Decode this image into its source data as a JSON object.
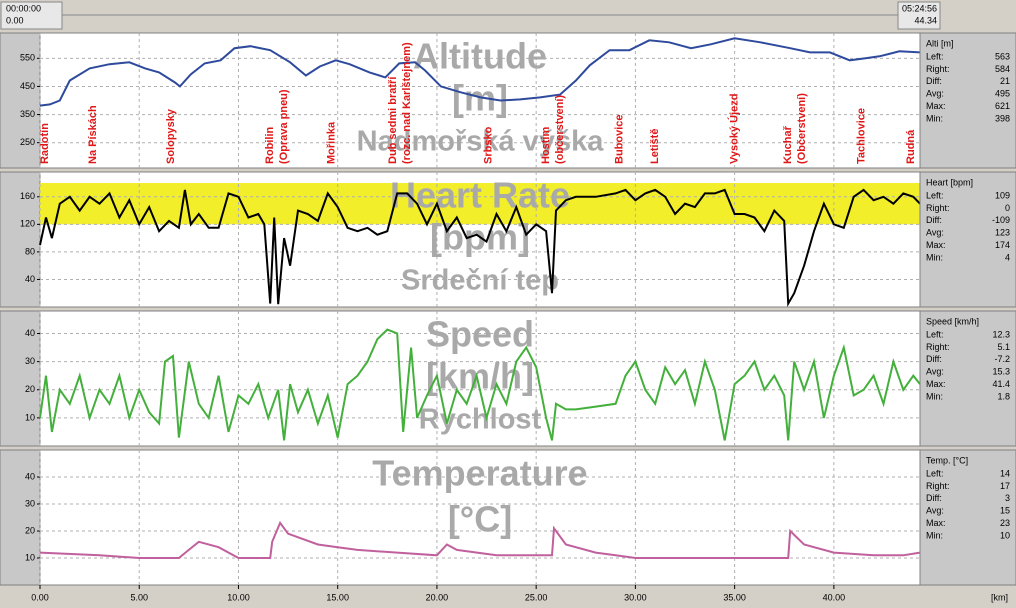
{
  "header": {
    "start_time": "00:00:00",
    "start_km": "0.00",
    "end_time": "05:24:56",
    "end_km": "44.34"
  },
  "chart_data": [
    {
      "type": "line",
      "title": [
        "Altitude",
        "[m]",
        "Nadmořská výška"
      ],
      "color": "#2e4a9c",
      "grid": true,
      "xlim": [
        0,
        44.34
      ],
      "ylim": [
        160,
        640
      ],
      "yticks": [
        250,
        350,
        450,
        550
      ],
      "x": [
        0,
        0.5,
        1,
        1.5,
        2.5,
        3.5,
        4.5,
        5.3,
        6,
        6.8,
        7.05,
        7.6,
        8.3,
        9.1,
        9.8,
        10.6,
        11.6,
        12.6,
        13.4,
        14.1,
        14.9,
        15.6,
        16.6,
        17.4,
        18.1,
        18.9,
        19.4,
        20.2,
        21.2,
        22.2,
        23.2,
        24.2,
        25.2,
        26.2,
        27,
        27.7,
        28.7,
        29.7,
        30.7,
        31.7,
        32.8,
        33.8,
        35,
        36.3,
        37.8,
        38.8,
        39.8,
        40.8,
        41.6,
        42.3,
        43.3,
        44.34
      ],
      "values": [
        382,
        386,
        400,
        471,
        514,
        529,
        536,
        514,
        500,
        464,
        450,
        493,
        532,
        543,
        586,
        593,
        579,
        536,
        489,
        521,
        543,
        529,
        500,
        482,
        532,
        536,
        507,
        450,
        429,
        411,
        400,
        404,
        411,
        421,
        471,
        525,
        579,
        579,
        614,
        607,
        586,
        600,
        621,
        607,
        586,
        571,
        571,
        543,
        550,
        557,
        575,
        571
      ],
      "waypoints": [
        {
          "label": [
            "Radotín"
          ],
          "x": 0.25
        },
        {
          "label": [
            "Na Pískách"
          ],
          "x": 2.67
        },
        {
          "label": [
            "Solopysky"
          ],
          "x": 6.6
        },
        {
          "label": [
            "Robilin",
            "(Oprava pneu)"
          ],
          "x": 11.6
        },
        {
          "label": [
            "Mořinka"
          ],
          "x": 14.7
        },
        {
          "label": [
            "Dub sedmi bratří",
            "(rozc. nad Karlštejnem)"
          ],
          "x": 17.8
        },
        {
          "label": [
            "Srbsko"
          ],
          "x": 22.6
        },
        {
          "label": [
            "Hostim",
            "(občerstvení)"
          ],
          "x": 25.5
        },
        {
          "label": [
            "Bubovice"
          ],
          "x": 29.2
        },
        {
          "label": [
            "Letiště"
          ],
          "x": 31.0
        },
        {
          "label": [
            "Vysoký Újezd"
          ],
          "x": 35.0
        },
        {
          "label": [
            "Kuchař",
            "(Občerstvení)"
          ],
          "x": 37.7
        },
        {
          "label": [
            "Tachlovice"
          ],
          "x": 41.4
        },
        {
          "label": [
            "Rudná"
          ],
          "x": 43.9
        }
      ]
    },
    {
      "type": "line",
      "title": [
        "Heart Rate",
        "[bpm]",
        "Srdeční tep"
      ],
      "color": "#000000",
      "grid": true,
      "zone": [
        120,
        180
      ],
      "zone_color": "#f2ee2a",
      "xlim": [
        0,
        44.34
      ],
      "ylim": [
        0,
        196
      ],
      "yticks": [
        40,
        80,
        120,
        160
      ],
      "x": [
        0,
        0.3,
        0.6,
        1,
        1.5,
        2,
        2.5,
        3,
        3.5,
        4,
        4.5,
        5,
        5.5,
        6,
        6.5,
        7,
        7.3,
        7.6,
        8,
        8.5,
        9,
        9.5,
        10,
        10.5,
        11,
        11.3,
        11.6,
        11.8,
        12,
        12.3,
        12.6,
        13,
        13.5,
        14,
        14.5,
        15,
        15.5,
        16,
        16.5,
        17,
        17.5,
        18,
        18.5,
        19,
        19.5,
        20,
        20.5,
        21,
        21.5,
        22,
        22.5,
        23,
        23.5,
        24,
        24.5,
        25,
        25.5,
        25.8,
        26,
        26.5,
        27,
        28,
        29,
        29.5,
        30,
        30.5,
        31,
        31.5,
        32,
        32.5,
        33,
        33.5,
        34,
        34.5,
        35,
        35.5,
        36,
        36.5,
        37,
        37.5,
        37.7,
        38,
        38.5,
        39,
        39.5,
        40,
        40.5,
        41,
        41.5,
        42,
        42.5,
        43,
        43.5,
        44,
        44.34
      ],
      "values": [
        90,
        130,
        100,
        150,
        160,
        140,
        160,
        150,
        165,
        130,
        155,
        120,
        145,
        110,
        125,
        115,
        170,
        120,
        135,
        115,
        115,
        165,
        160,
        130,
        135,
        120,
        5,
        130,
        4,
        100,
        60,
        140,
        135,
        125,
        165,
        145,
        115,
        110,
        115,
        105,
        110,
        165,
        165,
        150,
        120,
        150,
        110,
        130,
        100,
        105,
        95,
        135,
        110,
        145,
        105,
        120,
        110,
        20,
        140,
        155,
        160,
        160,
        165,
        170,
        155,
        165,
        170,
        160,
        135,
        150,
        145,
        165,
        165,
        170,
        135,
        135,
        130,
        110,
        140,
        125,
        5,
        20,
        60,
        110,
        150,
        120,
        115,
        160,
        170,
        155,
        160,
        150,
        165,
        160,
        150
      ]
    },
    {
      "type": "line",
      "title": [
        "Speed",
        "[km/h]",
        "Rychlost"
      ],
      "color": "#44b03c",
      "grid": true,
      "xlim": [
        0,
        44.34
      ],
      "ylim": [
        0,
        48
      ],
      "yticks": [
        10,
        20,
        30,
        40
      ],
      "x": [
        0,
        0.3,
        0.6,
        1,
        1.5,
        2,
        2.5,
        3,
        3.5,
        4,
        4.5,
        5,
        5.5,
        6,
        6.3,
        6.7,
        7,
        7.5,
        8,
        8.5,
        9,
        9.5,
        10,
        10.5,
        11,
        11.5,
        12,
        12.3,
        12.6,
        13,
        13.5,
        14,
        14.5,
        15,
        15.5,
        16,
        16.5,
        17,
        17.5,
        18,
        18.3,
        18.7,
        19,
        19.5,
        20,
        20.5,
        21,
        21.5,
        22,
        22.5,
        23,
        23.5,
        24,
        24.5,
        25,
        25.5,
        25.8,
        26,
        26.5,
        27,
        28,
        29,
        29.5,
        30,
        30.5,
        31,
        31.5,
        32,
        32.5,
        33,
        33.5,
        34,
        34.5,
        35,
        35.5,
        36,
        36.5,
        37,
        37.5,
        37.7,
        38,
        38.5,
        39,
        39.5,
        40,
        40.5,
        41,
        41.5,
        42,
        42.5,
        43,
        43.5,
        44,
        44.34
      ],
      "values": [
        10,
        25,
        5,
        20,
        15,
        25,
        10,
        20,
        15,
        25,
        10,
        20,
        12,
        8,
        30,
        32,
        3,
        30,
        15,
        10,
        25,
        5,
        18,
        15,
        22,
        10,
        20,
        2,
        22,
        12,
        20,
        8,
        18,
        3,
        22,
        25,
        30,
        38,
        41.4,
        40,
        5,
        35,
        10,
        18,
        25,
        8,
        20,
        15,
        25,
        10,
        22,
        15,
        30,
        35,
        28,
        10,
        2,
        15,
        13,
        13,
        14,
        15,
        25,
        30,
        20,
        15,
        28,
        22,
        27,
        15,
        30,
        20,
        2,
        22,
        25,
        30,
        20,
        25,
        18,
        2,
        30,
        20,
        30,
        10,
        25,
        35,
        18,
        20,
        25,
        15,
        30,
        20,
        25,
        22
      ]
    },
    {
      "type": "line",
      "title": [
        "Temperature",
        "[°C]"
      ],
      "color": "#c0609c",
      "grid": true,
      "xlim": [
        0,
        44.34
      ],
      "ylim": [
        0,
        50
      ],
      "yticks": [
        10,
        20,
        30,
        40
      ],
      "xticks": [
        {
          "value": 0,
          "label": "0.00"
        },
        {
          "value": 5,
          "label": "5.00"
        },
        {
          "value": 10,
          "label": "10.00"
        },
        {
          "value": 15,
          "label": "15.00"
        },
        {
          "value": 20,
          "label": "20.00"
        },
        {
          "value": 25,
          "label": "25.00"
        },
        {
          "value": 30,
          "label": "30.00"
        },
        {
          "value": 35,
          "label": "35.00"
        },
        {
          "value": 40,
          "label": "40.00"
        }
      ],
      "xlabel": "[km]",
      "x": [
        0,
        3,
        5,
        6,
        7,
        7.5,
        8,
        9,
        10,
        11,
        11.6,
        11.7,
        12.1,
        12.5,
        14,
        15,
        16,
        18,
        20,
        20.5,
        21,
        23,
        25.8,
        25.9,
        26.5,
        28,
        29,
        30,
        35,
        37.7,
        37.8,
        38.5,
        40,
        42,
        43.5,
        44.34
      ],
      "values": [
        12,
        11,
        10,
        10,
        10,
        13,
        16,
        14,
        10,
        10,
        10,
        16,
        23,
        19,
        15,
        14,
        13,
        12,
        11,
        15,
        13,
        11,
        11,
        21,
        15,
        12,
        11,
        10,
        10,
        10,
        20,
        15,
        12,
        11,
        11,
        12
      ]
    }
  ],
  "info_panels": [
    {
      "title": "Alti [m]",
      "rows": [
        [
          "Left:",
          563
        ],
        [
          "Right:",
          584
        ],
        [
          "Diff:",
          21
        ],
        [
          "Avg:",
          495
        ],
        [
          "Max:",
          621
        ],
        [
          "Min:",
          398
        ]
      ]
    },
    {
      "title": "Heart [bpm]",
      "rows": [
        [
          "Left:",
          109
        ],
        [
          "Right:",
          0
        ],
        [
          "Diff:",
          -109
        ],
        [
          "Avg:",
          123
        ],
        [
          "Max:",
          174
        ],
        [
          "Min:",
          4
        ]
      ]
    },
    {
      "title": "Speed [km/h]",
      "rows": [
        [
          "Left:",
          12.3
        ],
        [
          "Right:",
          5.1
        ],
        [
          "Diff:",
          -7.2
        ],
        [
          "Avg:",
          15.3
        ],
        [
          "Max:",
          41.4
        ],
        [
          "Min:",
          1.8
        ]
      ]
    },
    {
      "title": "Temp. [°C]",
      "rows": [
        [
          "Left:",
          14
        ],
        [
          "Right:",
          17
        ],
        [
          "Diff:",
          3
        ],
        [
          "Avg:",
          15
        ],
        [
          "Max:",
          23
        ],
        [
          "Min:",
          10
        ]
      ]
    }
  ]
}
